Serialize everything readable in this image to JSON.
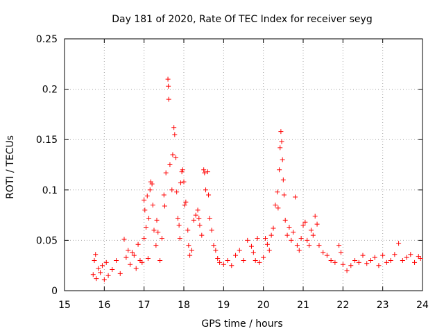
{
  "chart_data": {
    "type": "scatter",
    "title": "Day 181 of 2020, Rate Of TEC Index for receiver seyg",
    "xlabel": "GPS time / hours",
    "ylabel": "ROTI / TECUs",
    "xlim": [
      15,
      24
    ],
    "ylim": [
      0,
      0.25
    ],
    "xticks": [
      15,
      16,
      17,
      18,
      19,
      20,
      21,
      22,
      23,
      24
    ],
    "xtick_labels": [
      "15",
      "16",
      "17",
      "18",
      "19",
      "20",
      "21",
      "22",
      "23",
      "24"
    ],
    "yticks": [
      0,
      0.05,
      0.1,
      0.15,
      0.2,
      0.25
    ],
    "ytick_labels": [
      "0",
      "0.05",
      "0.1",
      "0.15",
      "0.2",
      "0.25"
    ],
    "grid": true,
    "marker": "plus",
    "marker_color": "#ff0000",
    "series": [
      {
        "name": "ROTI",
        "points": [
          [
            15.72,
            0.016
          ],
          [
            15.75,
            0.03
          ],
          [
            15.78,
            0.036
          ],
          [
            15.8,
            0.012
          ],
          [
            15.85,
            0.022
          ],
          [
            15.9,
            0.018
          ],
          [
            15.95,
            0.025
          ],
          [
            16.0,
            0.011
          ],
          [
            16.05,
            0.028
          ],
          [
            16.1,
            0.015
          ],
          [
            16.2,
            0.021
          ],
          [
            16.3,
            0.03
          ],
          [
            16.4,
            0.017
          ],
          [
            16.5,
            0.051
          ],
          [
            16.55,
            0.033
          ],
          [
            16.6,
            0.04
          ],
          [
            16.65,
            0.026
          ],
          [
            16.7,
            0.038
          ],
          [
            16.75,
            0.035
          ],
          [
            16.8,
            0.022
          ],
          [
            16.85,
            0.046
          ],
          [
            16.9,
            0.03
          ],
          [
            16.95,
            0.028
          ],
          [
            17.0,
            0.052
          ],
          [
            17.0,
            0.09
          ],
          [
            17.02,
            0.08
          ],
          [
            17.05,
            0.063
          ],
          [
            17.08,
            0.094
          ],
          [
            17.1,
            0.032
          ],
          [
            17.12,
            0.072
          ],
          [
            17.15,
            0.1
          ],
          [
            17.17,
            0.108
          ],
          [
            17.2,
            0.106
          ],
          [
            17.22,
            0.085
          ],
          [
            17.25,
            0.06
          ],
          [
            17.3,
            0.045
          ],
          [
            17.32,
            0.07
          ],
          [
            17.35,
            0.058
          ],
          [
            17.4,
            0.03
          ],
          [
            17.45,
            0.052
          ],
          [
            17.5,
            0.095
          ],
          [
            17.52,
            0.084
          ],
          [
            17.55,
            0.117
          ],
          [
            17.6,
            0.21
          ],
          [
            17.61,
            0.203
          ],
          [
            17.62,
            0.19
          ],
          [
            17.65,
            0.125
          ],
          [
            17.7,
            0.1
          ],
          [
            17.72,
            0.135
          ],
          [
            17.75,
            0.162
          ],
          [
            17.77,
            0.155
          ],
          [
            17.8,
            0.132
          ],
          [
            17.82,
            0.098
          ],
          [
            17.85,
            0.072
          ],
          [
            17.88,
            0.065
          ],
          [
            17.9,
            0.052
          ],
          [
            17.92,
            0.107
          ],
          [
            17.95,
            0.118
          ],
          [
            17.97,
            0.12
          ],
          [
            18.0,
            0.108
          ],
          [
            18.02,
            0.085
          ],
          [
            18.05,
            0.088
          ],
          [
            18.1,
            0.06
          ],
          [
            18.12,
            0.045
          ],
          [
            18.15,
            0.035
          ],
          [
            18.2,
            0.04
          ],
          [
            18.25,
            0.07
          ],
          [
            18.3,
            0.075
          ],
          [
            18.35,
            0.08
          ],
          [
            18.38,
            0.072
          ],
          [
            18.4,
            0.065
          ],
          [
            18.45,
            0.055
          ],
          [
            18.5,
            0.12
          ],
          [
            18.52,
            0.117
          ],
          [
            18.55,
            0.1
          ],
          [
            18.6,
            0.118
          ],
          [
            18.62,
            0.095
          ],
          [
            18.65,
            0.072
          ],
          [
            18.7,
            0.06
          ],
          [
            18.75,
            0.045
          ],
          [
            18.8,
            0.04
          ],
          [
            18.85,
            0.032
          ],
          [
            18.9,
            0.028
          ],
          [
            19.0,
            0.026
          ],
          [
            19.1,
            0.03
          ],
          [
            19.2,
            0.025
          ],
          [
            19.3,
            0.035
          ],
          [
            19.4,
            0.04
          ],
          [
            19.5,
            0.03
          ],
          [
            19.6,
            0.05
          ],
          [
            19.7,
            0.044
          ],
          [
            19.75,
            0.038
          ],
          [
            19.8,
            0.03
          ],
          [
            19.85,
            0.052
          ],
          [
            19.9,
            0.028
          ],
          [
            20.0,
            0.033
          ],
          [
            20.05,
            0.052
          ],
          [
            20.1,
            0.046
          ],
          [
            20.15,
            0.04
          ],
          [
            20.2,
            0.055
          ],
          [
            20.25,
            0.062
          ],
          [
            20.3,
            0.085
          ],
          [
            20.35,
            0.098
          ],
          [
            20.37,
            0.082
          ],
          [
            20.4,
            0.12
          ],
          [
            20.42,
            0.142
          ],
          [
            20.44,
            0.158
          ],
          [
            20.46,
            0.148
          ],
          [
            20.48,
            0.13
          ],
          [
            20.5,
            0.11
          ],
          [
            20.52,
            0.095
          ],
          [
            20.55,
            0.07
          ],
          [
            20.6,
            0.055
          ],
          [
            20.65,
            0.063
          ],
          [
            20.7,
            0.05
          ],
          [
            20.75,
            0.058
          ],
          [
            20.8,
            0.093
          ],
          [
            20.85,
            0.045
          ],
          [
            20.9,
            0.04
          ],
          [
            20.95,
            0.052
          ],
          [
            21.0,
            0.065
          ],
          [
            21.05,
            0.068
          ],
          [
            21.1,
            0.05
          ],
          [
            21.15,
            0.045
          ],
          [
            21.2,
            0.06
          ],
          [
            21.25,
            0.055
          ],
          [
            21.3,
            0.074
          ],
          [
            21.35,
            0.066
          ],
          [
            21.4,
            0.045
          ],
          [
            21.5,
            0.038
          ],
          [
            21.6,
            0.035
          ],
          [
            21.7,
            0.03
          ],
          [
            21.8,
            0.028
          ],
          [
            21.9,
            0.045
          ],
          [
            21.95,
            0.038
          ],
          [
            22.0,
            0.026
          ],
          [
            22.1,
            0.02
          ],
          [
            22.2,
            0.025
          ],
          [
            22.3,
            0.03
          ],
          [
            22.4,
            0.028
          ],
          [
            22.5,
            0.035
          ],
          [
            22.6,
            0.027
          ],
          [
            22.7,
            0.03
          ],
          [
            22.8,
            0.033
          ],
          [
            22.9,
            0.025
          ],
          [
            23.0,
            0.035
          ],
          [
            23.1,
            0.028
          ],
          [
            23.2,
            0.03
          ],
          [
            23.3,
            0.036
          ],
          [
            23.4,
            0.047
          ],
          [
            23.5,
            0.03
          ],
          [
            23.6,
            0.033
          ],
          [
            23.7,
            0.036
          ],
          [
            23.8,
            0.028
          ],
          [
            23.9,
            0.034
          ],
          [
            23.95,
            0.032
          ]
        ]
      }
    ]
  }
}
